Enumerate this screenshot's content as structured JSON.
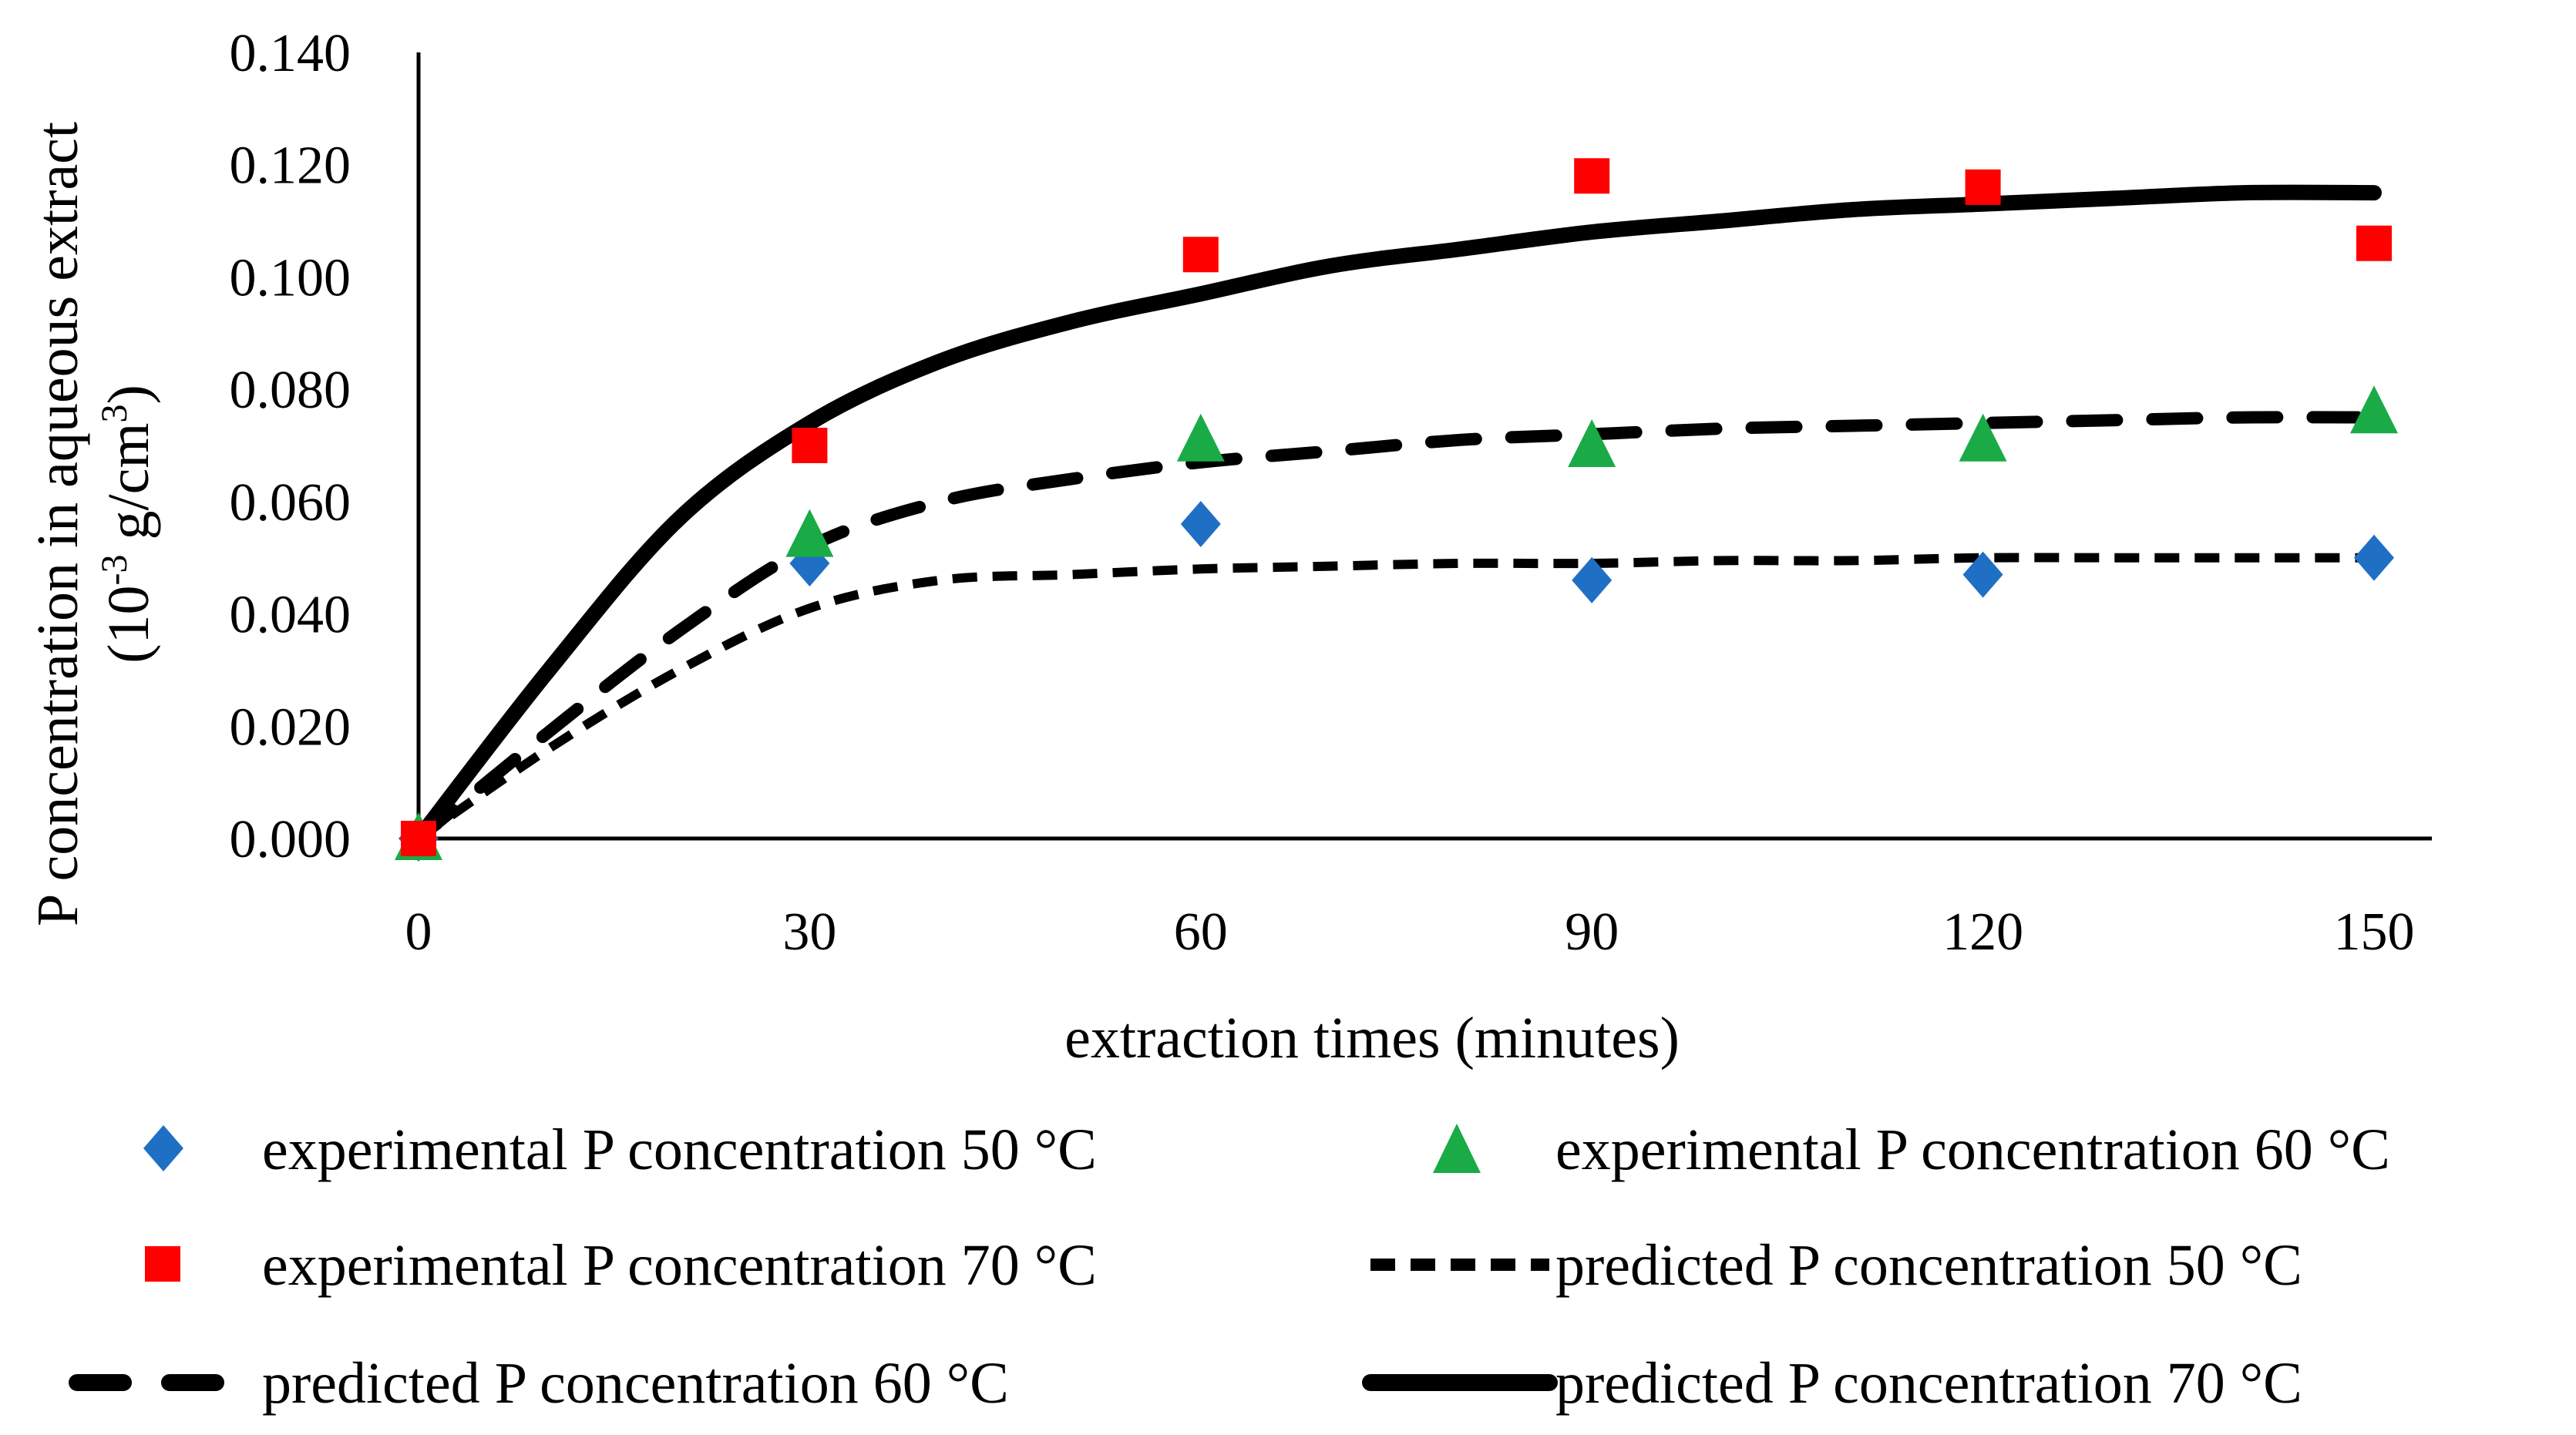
{
  "chart_data": {
    "type": "scatter",
    "title": "",
    "xlabel": "extraction times (minutes)",
    "ylabel_line1": "P concentration in aqueous extract",
    "ylabel_line2": {
      "open": "(10",
      "exp1": "-3",
      "mid": " g/cm",
      "exp2": "3",
      "close": ")"
    },
    "xlim": [
      0,
      150
    ],
    "ylim": [
      0,
      0.14
    ],
    "x_ticks": [
      "0",
      "30",
      "60",
      "90",
      "120",
      "150"
    ],
    "y_ticks": [
      "0.000",
      "0.020",
      "0.040",
      "0.060",
      "0.080",
      "0.100",
      "0.120",
      "0.140"
    ],
    "grid": false,
    "legend_position": "bottom",
    "series": [
      {
        "name": "experimental P concentration 50 °C",
        "kind": "marker",
        "marker": "diamond",
        "color": "#1f6fc5",
        "x": [
          0,
          30,
          60,
          90,
          120,
          150
        ],
        "y": [
          0.0,
          0.049,
          0.056,
          0.046,
          0.047,
          0.05
        ]
      },
      {
        "name": "experimental P concentration 60 °C",
        "kind": "marker",
        "marker": "triangle",
        "color": "#1aab47",
        "x": [
          0,
          30,
          60,
          90,
          120,
          150
        ],
        "y": [
          0.0,
          0.054,
          0.071,
          0.07,
          0.071,
          0.076
        ]
      },
      {
        "name": "experimental P concentration 70 °C",
        "kind": "marker",
        "marker": "square",
        "color": "#ff0000",
        "x": [
          0,
          30,
          60,
          90,
          120,
          150
        ],
        "y": [
          0.0,
          0.07,
          0.104,
          0.118,
          0.116,
          0.106
        ]
      },
      {
        "name": "predicted P concentration 50 °C",
        "kind": "line",
        "dash": "short",
        "color": "#000000",
        "x": [
          0,
          10,
          20,
          30,
          40,
          50,
          60,
          70,
          80,
          90,
          100,
          110,
          120,
          130,
          140,
          150
        ],
        "y": [
          0.0,
          0.016,
          0.03,
          0.041,
          0.046,
          0.047,
          0.048,
          0.0485,
          0.049,
          0.049,
          0.0495,
          0.0495,
          0.05,
          0.05,
          0.05,
          0.05
        ]
      },
      {
        "name": "predicted P concentration 60 °C",
        "kind": "line",
        "dash": "long",
        "color": "#000000",
        "x": [
          0,
          10,
          20,
          30,
          40,
          50,
          60,
          70,
          80,
          90,
          100,
          110,
          120,
          130,
          140,
          150
        ],
        "y": [
          0.0,
          0.019,
          0.037,
          0.052,
          0.06,
          0.064,
          0.067,
          0.069,
          0.071,
          0.072,
          0.073,
          0.0735,
          0.074,
          0.0745,
          0.075,
          0.075
        ]
      },
      {
        "name": "predicted P concentration 70 °C",
        "kind": "line",
        "dash": "solid",
        "color": "#000000",
        "x": [
          0,
          10,
          20,
          30,
          40,
          50,
          60,
          70,
          80,
          90,
          100,
          110,
          120,
          130,
          140,
          150
        ],
        "y": [
          0.0,
          0.03,
          0.057,
          0.074,
          0.085,
          0.092,
          0.097,
          0.102,
          0.105,
          0.108,
          0.11,
          0.112,
          0.113,
          0.114,
          0.115,
          0.115
        ]
      }
    ]
  }
}
